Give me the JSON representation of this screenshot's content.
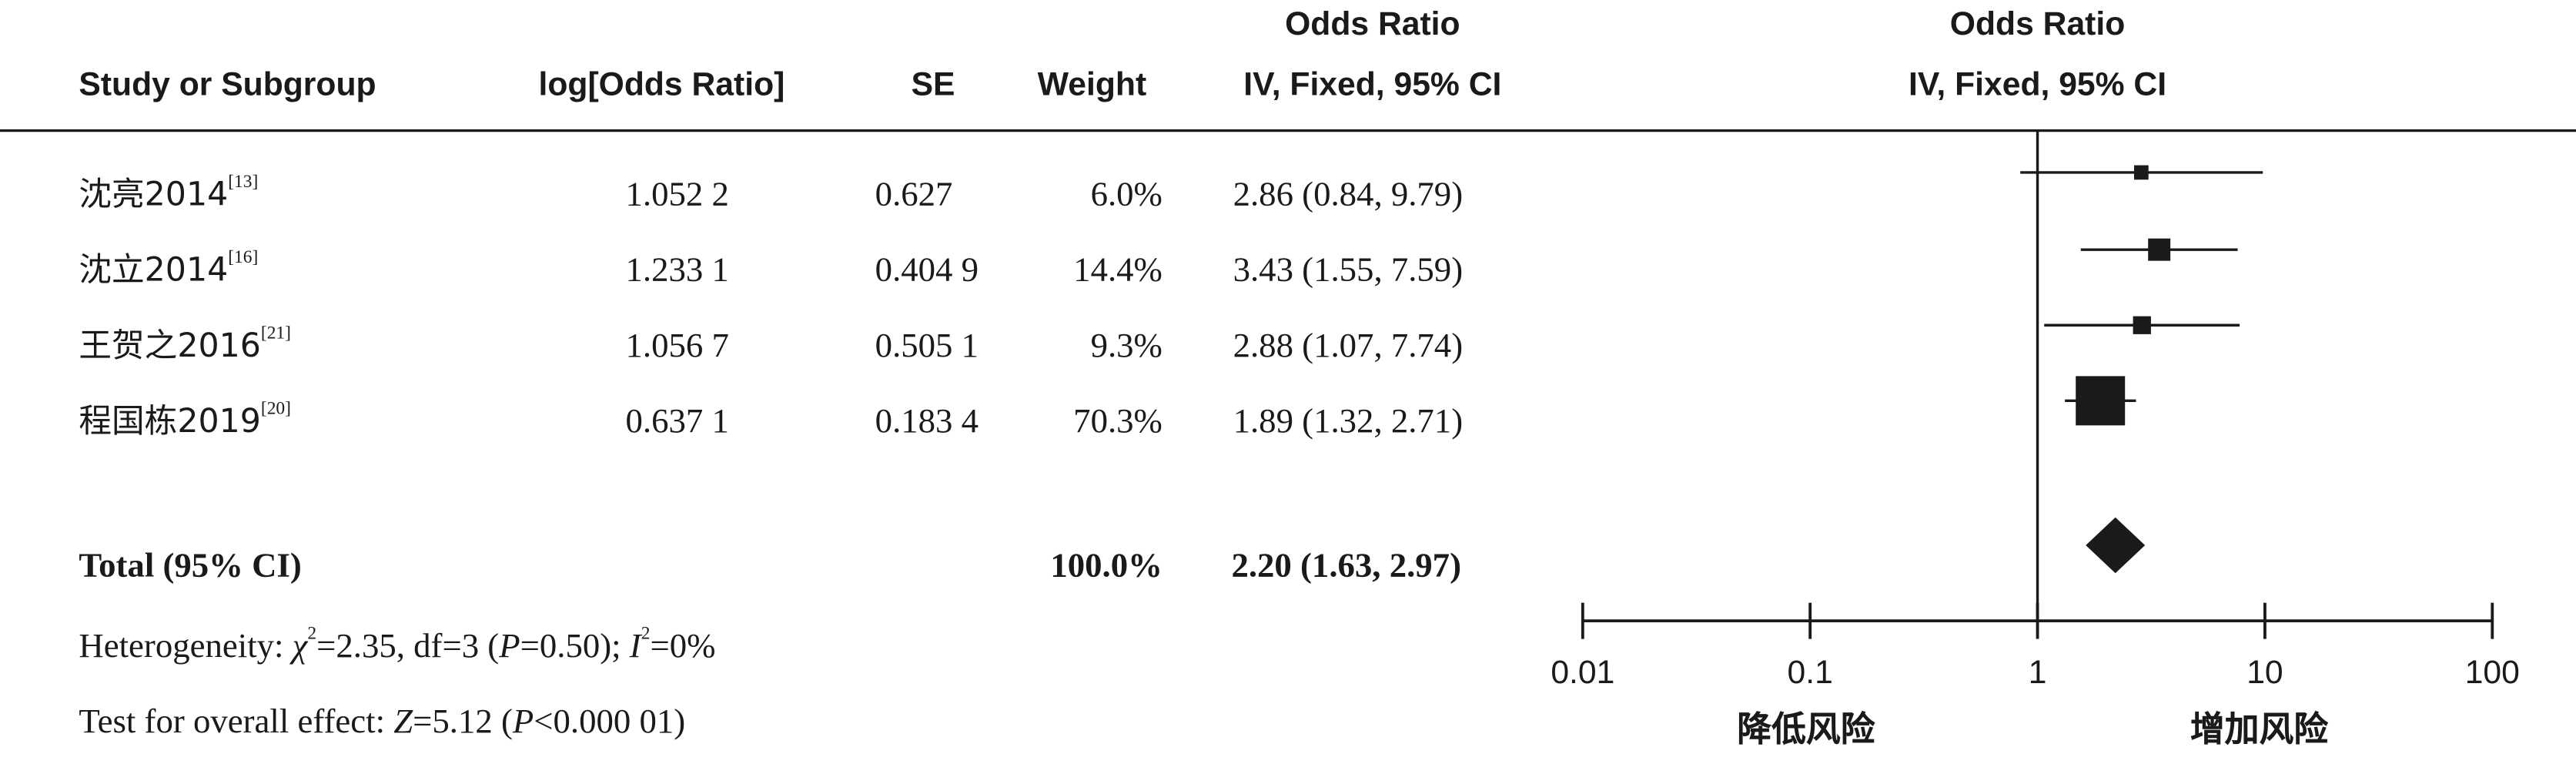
{
  "headers": {
    "study": "Study or Subgroup",
    "log_or": "log[Odds Ratio]",
    "se": "SE",
    "weight": "Weight",
    "or_table_line1": "Odds Ratio",
    "or_table_line2": "IV, Fixed, 95% CI",
    "or_plot_line1": "Odds Ratio",
    "or_plot_line2": "IV, Fixed, 95% CI"
  },
  "studies": [
    {
      "name": "沈亮2014",
      "ref": "[13]",
      "log_or": "1.052 2",
      "se": "0.627",
      "weight": "6.0%",
      "ci_text": "2.86 (0.84, 9.79)"
    },
    {
      "name": "沈立2014",
      "ref": "[16]",
      "log_or": "1.233 1",
      "se": "0.404 9",
      "weight": "14.4%",
      "ci_text": "3.43 (1.55, 7.59)"
    },
    {
      "name": "王贺之2016",
      "ref": "[21]",
      "log_or": "1.056 7",
      "se": "0.505 1",
      "weight": "9.3%",
      "ci_text": "2.88 (1.07, 7.74)"
    },
    {
      "name": "程国栋2019",
      "ref": "[20]",
      "log_or": "0.637 1",
      "se": "0.183 4",
      "weight": "70.3%",
      "ci_text": "1.89 (1.32, 2.71)"
    }
  ],
  "total": {
    "label": "Total (95% CI)",
    "weight": "100.0%",
    "ci_text": "2.20 (1.63, 2.97)"
  },
  "heterogeneity": {
    "prefix": "Heterogeneity: ",
    "chi_symbol": "χ",
    "chi_value": "=2.35, df=3 (",
    "p_symbol": "P",
    "p_value": "=0.50); ",
    "i_symbol": "I",
    "i_value": "=0%"
  },
  "overall_effect": {
    "prefix": "Test for overall effect: ",
    "z_symbol": "Z",
    "z_value": "=5.12 (",
    "p_symbol": "P",
    "p_value": "<0.000 01)"
  },
  "axis": {
    "ticks": [
      "0.01",
      "0.1",
      "1",
      "10",
      "100"
    ],
    "left_label": "降低风险",
    "right_label": "增加风险"
  },
  "chart_data": {
    "type": "forest",
    "scale": "log",
    "xlim": [
      0.01,
      100
    ],
    "null_value": 1,
    "studies": [
      {
        "name": "沈亮2014",
        "or": 2.86,
        "lower": 0.84,
        "upper": 9.79,
        "weight": 6.0
      },
      {
        "name": "沈立2014",
        "or": 3.43,
        "lower": 1.55,
        "upper": 7.59,
        "weight": 14.4
      },
      {
        "name": "王贺之2016",
        "or": 2.88,
        "lower": 1.07,
        "upper": 7.74,
        "weight": 9.3
      },
      {
        "name": "程国栋2019",
        "or": 1.89,
        "lower": 1.32,
        "upper": 2.71,
        "weight": 70.3
      }
    ],
    "pooled": {
      "or": 2.2,
      "lower": 1.63,
      "upper": 2.97
    },
    "colors": {
      "marks": "#1a1a1a"
    }
  }
}
